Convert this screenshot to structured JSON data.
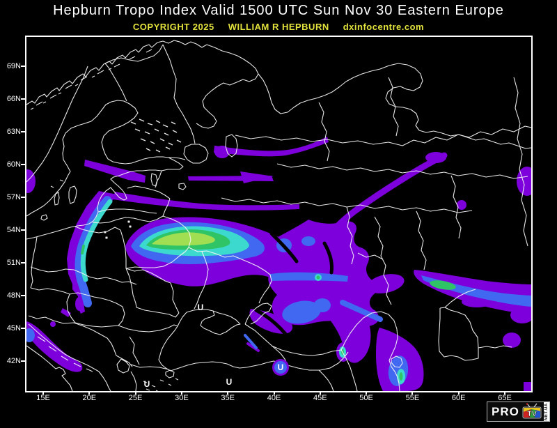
{
  "header": {
    "title": "Hepburn Tropo Index Valid 1500 UTC Sun Nov 30 Eastern Europe",
    "copyright": "COPYRIGHT 2025",
    "author": "WILLIAM R HEPBURN",
    "site": "dxinfocentre.com"
  },
  "axes": {
    "lat_labels": [
      "69N",
      "66N",
      "63N",
      "60N",
      "57N",
      "54N",
      "51N",
      "48N",
      "45N",
      "42N"
    ],
    "lon_labels": [
      "15E",
      "20E",
      "25E",
      "30E",
      "35E",
      "40E",
      "45E",
      "50E",
      "55E",
      "60E",
      "65E"
    ]
  },
  "map": {
    "u_labels": [
      "U",
      "U",
      "U",
      "U"
    ],
    "colors": {
      "background": "#000000",
      "border_lines": "#f5f5f5",
      "frame": "#ffffff",
      "title_text": "#ffffff",
      "copyright_text": "#e3e33c",
      "scale": [
        {
          "name": "tropo-level-1",
          "hex": "#7d00dc"
        },
        {
          "name": "tropo-level-2",
          "hex": "#4168f0"
        },
        {
          "name": "tropo-level-3",
          "hex": "#3cd9ce"
        },
        {
          "name": "tropo-level-4",
          "hex": "#2fc567"
        },
        {
          "name": "tropo-level-5",
          "hex": "#a2de52"
        }
      ]
    },
    "tropo_regions": [
      {
        "area": "Poland / Kaliningrad Baltic coast crescent",
        "intensity": "strong - cyan core"
      },
      {
        "area": "Belarus / western Russia band",
        "intensity": "intense - yellow-green core"
      },
      {
        "area": "Volga region complex",
        "intensity": "moderate - blue patches"
      },
      {
        "area": "Southeast band toward 60E near 49N",
        "intensity": "strong - green core"
      },
      {
        "area": "Caspian Sea shore",
        "intensity": "strong - cyan-green spot"
      },
      {
        "area": "Adriatic Sea",
        "intensity": "moderate - blue patch"
      },
      {
        "area": "Scandinavia and northwest Russia streaks",
        "intensity": "light - purple"
      }
    ]
  },
  "logo": {
    "pro": "PRO",
    "tv": "TV",
    "suffix": "NET.UA"
  }
}
